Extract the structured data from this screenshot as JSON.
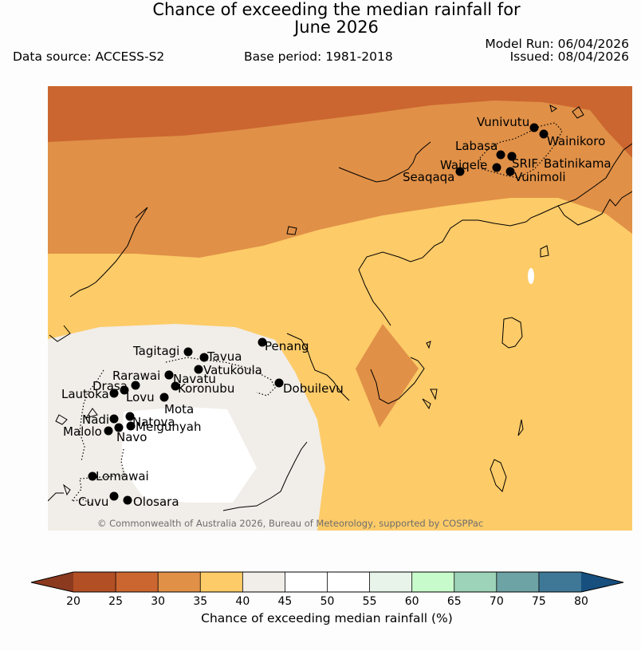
{
  "title": {
    "line1": "Chance of exceeding the median rainfall for",
    "line2": "June 2026"
  },
  "header": {
    "data_source": "Data source: ACCESS-S2",
    "base_period": "Base period: 1981-2018",
    "model_run": "Model Run: 06/04/2026",
    "issued": "Issued: 08/04/2026"
  },
  "map": {
    "copyright": "© Commonwealth of Australia 2026, Bureau of Meteorology, supported by COSPPac",
    "stations": [
      "Vunivutu",
      "Wainikoro",
      "Labasa",
      "SRIF",
      "Batinikama",
      "Waiqele",
      "Seaqaqa",
      "Vunimoli",
      "Penang",
      "Tagitagi",
      "Tavua",
      "Vatukoula",
      "Rarawai",
      "Navatu",
      "Drasa",
      "Koronubu",
      "Lautoka",
      "Lovu",
      "Mota",
      "Nadi",
      "Natova",
      "Meigunyah",
      "Malolo",
      "Navo",
      "Dobuilevu",
      "Lomawai",
      "Cuvu",
      "Olosara"
    ]
  },
  "colorbar": {
    "ticks": [
      "20",
      "25",
      "30",
      "35",
      "40",
      "45",
      "50",
      "55",
      "60",
      "65",
      "70",
      "75",
      "80"
    ],
    "colors": [
      "#b34f25",
      "#cb6630",
      "#e09047",
      "#fdcb68",
      "#f1ede8",
      "#ffffff",
      "#ffffff",
      "#e8f4ea",
      "#c8fbcb",
      "#9dd3b8",
      "#6ea3a6",
      "#3e7896"
    ],
    "under_color": "#8c3a1f",
    "over_color": "#174f7e",
    "label": "Chance of exceeding median rainfall (%)"
  }
}
